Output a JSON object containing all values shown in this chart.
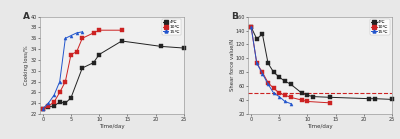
{
  "panel_A": {
    "title": "A",
    "xlabel": "Time/day",
    "ylabel": "Cooking loss/%",
    "ylim": [
      22,
      40
    ],
    "yticks": [
      22,
      24,
      26,
      28,
      30,
      32,
      34,
      36,
      38,
      40
    ],
    "xlim": [
      -0.5,
      25
    ],
    "xticks": [
      0,
      5,
      10,
      15,
      20,
      25
    ],
    "series": {
      "4C": {
        "x": [
          0,
          1,
          2,
          3,
          4,
          5,
          7,
          9,
          10,
          14,
          21,
          25
        ],
        "y": [
          23.0,
          23.3,
          23.5,
          24.2,
          24.0,
          25.0,
          30.5,
          31.5,
          33.0,
          35.5,
          34.5,
          34.2
        ],
        "color": "#222222",
        "marker": "s",
        "label": "4℃"
      },
      "10C": {
        "x": [
          0,
          1,
          2,
          3,
          4,
          5,
          6,
          7,
          9,
          10,
          14
        ],
        "y": [
          23.0,
          23.5,
          24.2,
          26.0,
          28.0,
          33.0,
          33.5,
          36.0,
          37.0,
          37.5,
          37.5
        ],
        "color": "#cc2222",
        "marker": "s",
        "label": "10℃"
      },
      "15C": {
        "x": [
          0,
          1,
          2,
          3,
          4,
          5,
          6,
          7
        ],
        "y": [
          23.0,
          24.0,
          25.5,
          28.0,
          36.0,
          36.5,
          37.0,
          37.2
        ],
        "color": "#2255cc",
        "marker": "^",
        "label": "15℃"
      }
    }
  },
  "panel_B": {
    "title": "B",
    "xlabel": "Time/day",
    "ylabel": "Shear force value/N",
    "ylim": [
      20,
      160
    ],
    "yticks": [
      20,
      40,
      60,
      80,
      100,
      120,
      140,
      160
    ],
    "xlim": [
      -0.5,
      25
    ],
    "xticks": [
      0,
      5,
      10,
      15,
      20,
      25
    ],
    "series": {
      "4C": {
        "x": [
          0,
          1,
          2,
          3,
          4,
          5,
          6,
          7,
          9,
          10,
          11,
          14,
          21,
          22,
          25
        ],
        "y": [
          145.0,
          128.0,
          135.0,
          93.0,
          80.0,
          73.0,
          67.0,
          63.0,
          50.0,
          47.0,
          45.0,
          44.0,
          42.0,
          42.0,
          41.0
        ],
        "color": "#222222",
        "marker": "s",
        "label": "4℃"
      },
      "10C": {
        "x": [
          0,
          1,
          2,
          3,
          4,
          5,
          6,
          7,
          9,
          10,
          14
        ],
        "y": [
          145.0,
          93.0,
          80.0,
          65.0,
          57.0,
          50.0,
          47.0,
          44.0,
          40.0,
          38.0,
          36.0
        ],
        "color": "#cc2222",
        "marker": "s",
        "label": "10℃"
      },
      "15C": {
        "x": [
          0,
          1,
          2,
          3,
          4,
          5,
          6,
          7
        ],
        "y": [
          145.0,
          93.0,
          78.0,
          63.0,
          50.0,
          45.0,
          38.0,
          35.0
        ],
        "color": "#2255cc",
        "marker": "^",
        "label": "15℃"
      }
    },
    "hline": 50,
    "hline_color": "#cc2222",
    "hline_style": "--"
  },
  "fig_bg": "#e8e8e8",
  "axes_bg": "#f0f0f0",
  "spine_color": "#888888"
}
